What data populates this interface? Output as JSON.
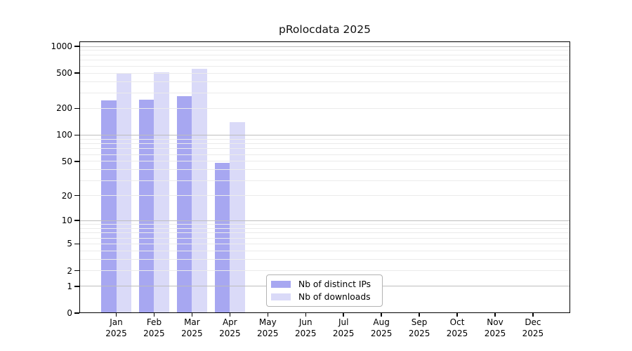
{
  "chart_data": {
    "type": "bar",
    "title": "pRolocdata 2025",
    "categories": [
      "Jan",
      "Feb",
      "Mar",
      "Apr",
      "May",
      "Jun",
      "Jul",
      "Aug",
      "Sep",
      "Oct",
      "Nov",
      "Dec"
    ],
    "year_label": "2025",
    "series": [
      {
        "name": "Nb of distinct IPs",
        "color": "#a7a7f1",
        "values": [
          245,
          252,
          277,
          48,
          null,
          null,
          null,
          null,
          null,
          null,
          null,
          null
        ]
      },
      {
        "name": "Nb of downloads",
        "color": "#dadaf8",
        "values": [
          500,
          515,
          560,
          140,
          null,
          null,
          null,
          null,
          null,
          null,
          null,
          null
        ]
      }
    ],
    "y_ticks": [
      0,
      1,
      2,
      5,
      10,
      20,
      50,
      100,
      200,
      500,
      1000
    ],
    "major_gridlines": [
      1,
      10,
      100,
      1000
    ],
    "scale": "log1p",
    "ylim": [
      0,
      1140
    ],
    "grid": true,
    "legend_position": "bottom-center-inside",
    "grid_major_color": "#bdbdbd",
    "grid_minor_color": "#ebebeb",
    "axis_color": "#000000",
    "text_color": "#000000"
  }
}
